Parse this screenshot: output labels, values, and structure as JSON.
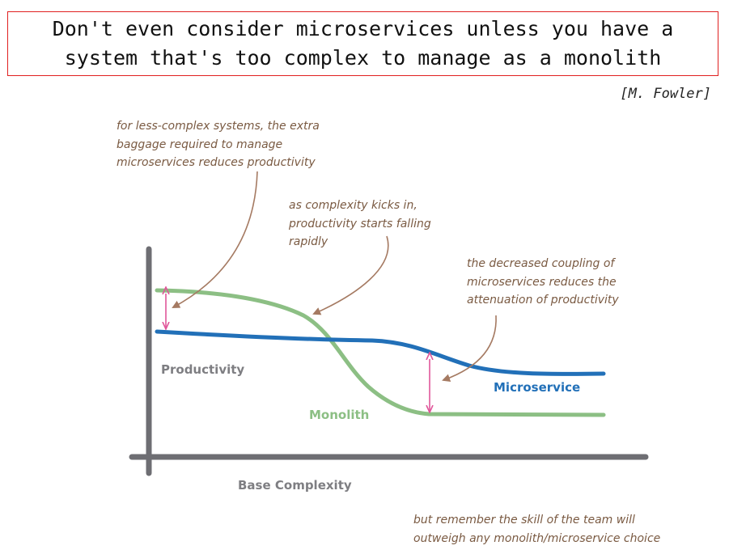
{
  "quote": {
    "text": "Don't even consider microservices unless you have a system that's too complex to manage as a monolith",
    "attribution": "[M. Fowler]"
  },
  "annotations": {
    "less_complex": "for less-complex systems, the extra\nbaggage required to manage\nmicroservices reduces productivity",
    "complexity_kicks_in": "as complexity kicks in,\nproductivity starts falling\nrapidly",
    "decreased_coupling": "the decreased coupling of\nmicroservices reduces the\nattenuation of productivity",
    "team_skill": "but remember the skill of the team will\noutweigh any monolith/microservice choice"
  },
  "diagram": {
    "y_axis_label": "Productivity",
    "x_axis_label": "Base Complexity",
    "series": [
      {
        "name": "Monolith",
        "color": "#8cbf84"
      },
      {
        "name": "Microservice",
        "color": "#2270b8"
      }
    ],
    "colors": {
      "axis": "#6e6e73",
      "annotation_text": "#7a5a42",
      "arrow": "#a57a62",
      "gap_marker": "#e0569a",
      "quote_border": "#e02020"
    }
  }
}
